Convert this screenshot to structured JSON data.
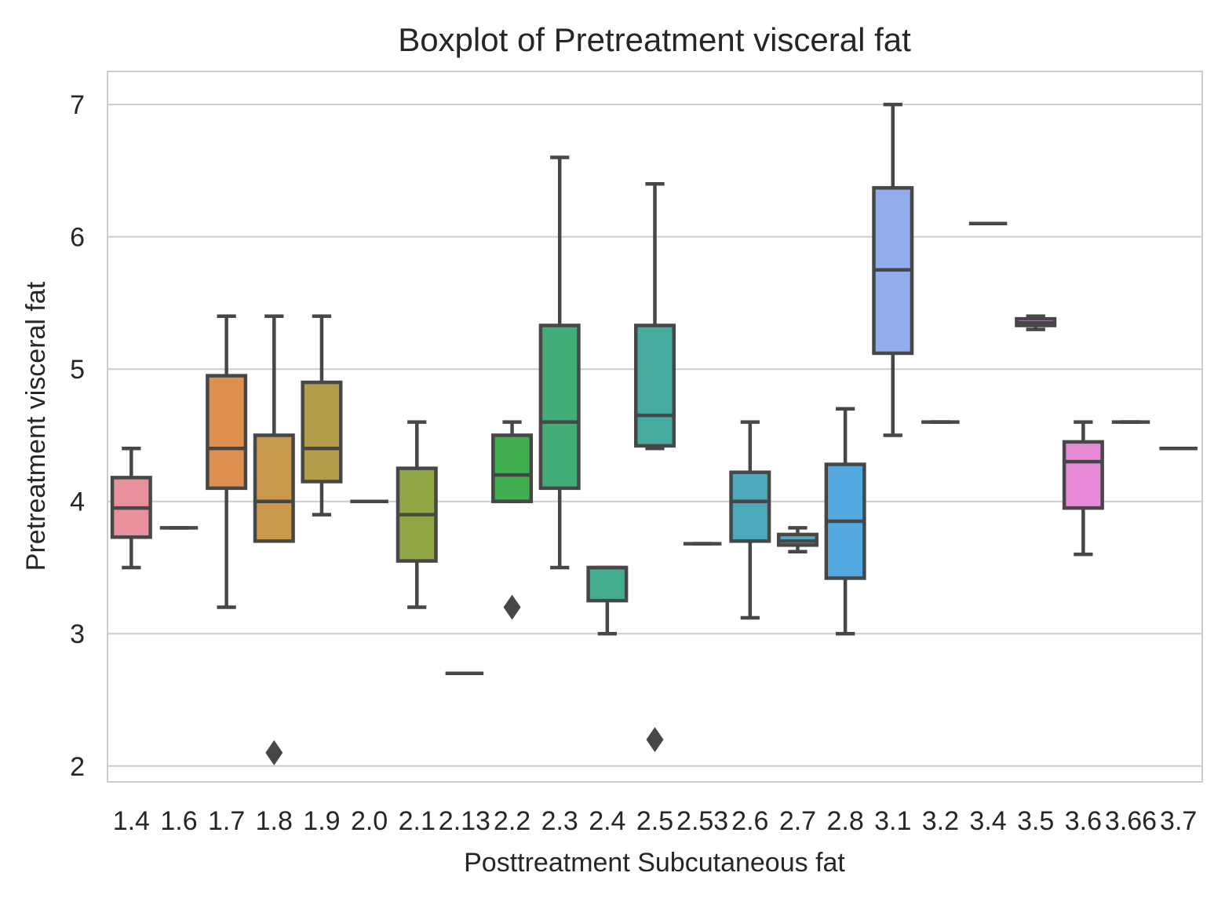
{
  "chart_data": {
    "type": "boxplot",
    "title": "Boxplot of Pretreatment visceral fat",
    "xlabel": "Posttreatment Subcutaneous fat",
    "ylabel": "Pretreatment visceral fat",
    "ylim": [
      1.88,
      7.25
    ],
    "yticks": [
      2,
      3,
      4,
      5,
      6,
      7
    ],
    "grid": true,
    "categories": [
      "1.4",
      "1.6",
      "1.7",
      "1.8",
      "1.9",
      "2.0",
      "2.1",
      "2.13",
      "2.2",
      "2.3",
      "2.4",
      "2.5",
      "2.53",
      "2.6",
      "2.7",
      "2.8",
      "3.1",
      "3.2",
      "3.4",
      "3.5",
      "3.6",
      "3.66",
      "3.7"
    ],
    "boxes": [
      {
        "category": "1.4",
        "whislo": 3.5,
        "q1": 3.73,
        "median": 3.95,
        "q3": 4.18,
        "whishi": 4.4,
        "fliers": [],
        "color": "#e8919c"
      },
      {
        "category": "1.6",
        "whislo": 3.8,
        "q1": 3.8,
        "median": 3.8,
        "q3": 3.8,
        "whishi": 3.8,
        "fliers": [],
        "color": "#e58f84"
      },
      {
        "category": "1.7",
        "whislo": 3.2,
        "q1": 4.1,
        "median": 4.4,
        "q3": 4.95,
        "whishi": 5.4,
        "fliers": [],
        "color": "#de904f"
      },
      {
        "category": "1.8",
        "whislo": 3.7,
        "q1": 3.7,
        "median": 4.0,
        "q3": 4.5,
        "whishi": 5.4,
        "fliers": [
          2.1
        ],
        "color": "#c99a4b"
      },
      {
        "category": "1.9",
        "whislo": 3.9,
        "q1": 4.15,
        "median": 4.4,
        "q3": 4.9,
        "whishi": 5.4,
        "fliers": [],
        "color": "#b39c48"
      },
      {
        "category": "2.0",
        "whislo": 4.0,
        "q1": 4.0,
        "median": 4.0,
        "q3": 4.0,
        "whishi": 4.0,
        "fliers": [],
        "color": "#a59f45"
      },
      {
        "category": "2.1",
        "whislo": 3.2,
        "q1": 3.55,
        "median": 3.9,
        "q3": 4.25,
        "whishi": 4.6,
        "fliers": [],
        "color": "#91a644"
      },
      {
        "category": "2.13",
        "whislo": 2.7,
        "q1": 2.7,
        "median": 2.7,
        "q3": 2.7,
        "whishi": 2.7,
        "fliers": [],
        "color": "#6ba947"
      },
      {
        "category": "2.2",
        "whislo": 4.0,
        "q1": 4.0,
        "median": 4.2,
        "q3": 4.5,
        "whishi": 4.6,
        "fliers": [
          3.2
        ],
        "color": "#3fae4e"
      },
      {
        "category": "2.3",
        "whislo": 3.5,
        "q1": 4.1,
        "median": 4.6,
        "q3": 5.33,
        "whishi": 6.6,
        "fliers": [],
        "color": "#43ad7a"
      },
      {
        "category": "2.4",
        "whislo": 3.0,
        "q1": 3.25,
        "median": 3.5,
        "q3": 3.5,
        "whishi": 3.5,
        "fliers": [],
        "color": "#45ad8f"
      },
      {
        "category": "2.5",
        "whislo": 4.4,
        "q1": 4.42,
        "median": 4.65,
        "q3": 5.33,
        "whishi": 6.4,
        "fliers": [
          2.2
        ],
        "color": "#47aca0"
      },
      {
        "category": "2.53",
        "whislo": 3.68,
        "q1": 3.68,
        "median": 3.68,
        "q3": 3.68,
        "whishi": 3.68,
        "fliers": [],
        "color": "#49abae"
      },
      {
        "category": "2.6",
        "whislo": 3.12,
        "q1": 3.7,
        "median": 4.0,
        "q3": 4.22,
        "whishi": 4.6,
        "fliers": [],
        "color": "#4caabb"
      },
      {
        "category": "2.7",
        "whislo": 3.62,
        "q1": 3.67,
        "median": 3.7,
        "q3": 3.75,
        "whishi": 3.8,
        "fliers": [],
        "color": "#4ea8c8"
      },
      {
        "category": "2.8",
        "whislo": 3.0,
        "q1": 3.42,
        "median": 3.85,
        "q3": 4.28,
        "whishi": 4.7,
        "fliers": [],
        "color": "#53a9df"
      },
      {
        "category": "3.1",
        "whislo": 4.5,
        "q1": 5.12,
        "median": 5.75,
        "q3": 6.37,
        "whishi": 7.0,
        "fliers": [],
        "color": "#92aeea"
      },
      {
        "category": "3.2",
        "whislo": 4.6,
        "q1": 4.6,
        "median": 4.6,
        "q3": 4.6,
        "whishi": 4.6,
        "fliers": [],
        "color": "#b3a4eb"
      },
      {
        "category": "3.4",
        "whislo": 6.1,
        "q1": 6.1,
        "median": 6.1,
        "q3": 6.1,
        "whishi": 6.1,
        "fliers": [],
        "color": "#d49be6"
      },
      {
        "category": "3.5",
        "whislo": 5.3,
        "q1": 5.33,
        "median": 5.35,
        "q3": 5.38,
        "whishi": 5.4,
        "fliers": [],
        "color": "#e194e0"
      },
      {
        "category": "3.6",
        "whislo": 3.6,
        "q1": 3.95,
        "median": 4.3,
        "q3": 4.45,
        "whishi": 4.6,
        "fliers": [],
        "color": "#e68ad8"
      },
      {
        "category": "3.66",
        "whislo": 4.6,
        "q1": 4.6,
        "median": 4.6,
        "q3": 4.6,
        "whishi": 4.6,
        "fliers": [],
        "color": "#e98dc9"
      },
      {
        "category": "3.7",
        "whislo": 4.4,
        "q1": 4.4,
        "median": 4.4,
        "q3": 4.4,
        "whishi": 4.4,
        "fliers": [],
        "color": "#eb90b5"
      }
    ]
  }
}
